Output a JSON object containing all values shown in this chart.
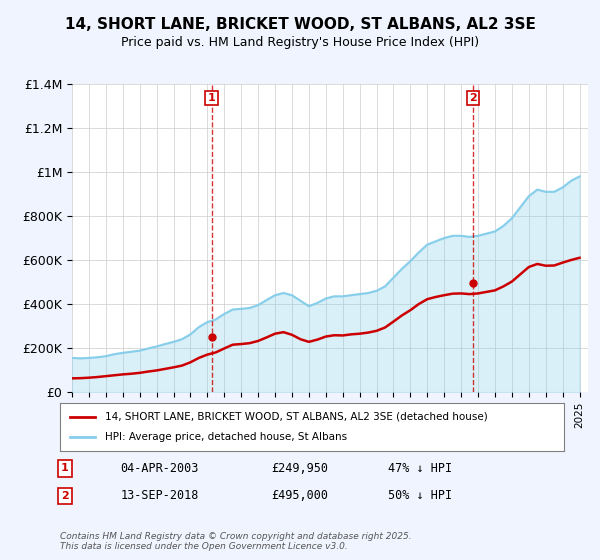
{
  "title": "14, SHORT LANE, BRICKET WOOD, ST ALBANS, AL2 3SE",
  "subtitle": "Price paid vs. HM Land Registry's House Price Index (HPI)",
  "ylim": [
    0,
    1400000
  ],
  "yticks": [
    0,
    200000,
    400000,
    600000,
    800000,
    1000000,
    1200000,
    1400000
  ],
  "ytick_labels": [
    "£0",
    "£200K",
    "£400K",
    "£600K",
    "£800K",
    "£1M",
    "£1.2M",
    "£1.4M"
  ],
  "x_start_year": 1995,
  "x_end_year": 2025,
  "hpi_color": "#87CEEB",
  "price_color": "#CC0000",
  "vline_color": "#CC0000",
  "marker1_year": 2003.25,
  "marker2_year": 2018.7,
  "price1": 249950,
  "price2": 495000,
  "legend_property": "14, SHORT LANE, BRICKET WOOD, ST ALBANS, AL2 3SE (detached house)",
  "legend_hpi": "HPI: Average price, detached house, St Albans",
  "annotation1_label": "1",
  "annotation2_label": "2",
  "ann1_date": "04-APR-2003",
  "ann1_price": "£249,950",
  "ann1_hpi": "47% ↓ HPI",
  "ann2_date": "13-SEP-2018",
  "ann2_price": "£495,000",
  "ann2_hpi": "50% ↓ HPI",
  "footer": "Contains HM Land Registry data © Crown copyright and database right 2025.\nThis data is licensed under the Open Government Licence v3.0.",
  "bg_color": "#f0f4ff",
  "plot_bg": "#ffffff",
  "hpi_data": [
    [
      1995.0,
      155000
    ],
    [
      1995.5,
      153000
    ],
    [
      1996.0,
      155000
    ],
    [
      1996.5,
      158000
    ],
    [
      1997.0,
      163000
    ],
    [
      1997.5,
      172000
    ],
    [
      1998.0,
      178000
    ],
    [
      1998.5,
      183000
    ],
    [
      1999.0,
      188000
    ],
    [
      1999.5,
      198000
    ],
    [
      2000.0,
      207000
    ],
    [
      2000.5,
      218000
    ],
    [
      2001.0,
      228000
    ],
    [
      2001.5,
      240000
    ],
    [
      2002.0,
      262000
    ],
    [
      2002.5,
      295000
    ],
    [
      2003.0,
      318000
    ],
    [
      2003.5,
      330000
    ],
    [
      2004.0,
      355000
    ],
    [
      2004.5,
      375000
    ],
    [
      2005.0,
      378000
    ],
    [
      2005.5,
      382000
    ],
    [
      2006.0,
      395000
    ],
    [
      2006.5,
      418000
    ],
    [
      2007.0,
      440000
    ],
    [
      2007.5,
      450000
    ],
    [
      2008.0,
      440000
    ],
    [
      2008.5,
      415000
    ],
    [
      2009.0,
      390000
    ],
    [
      2009.5,
      405000
    ],
    [
      2010.0,
      425000
    ],
    [
      2010.5,
      435000
    ],
    [
      2011.0,
      435000
    ],
    [
      2011.5,
      440000
    ],
    [
      2012.0,
      445000
    ],
    [
      2012.5,
      450000
    ],
    [
      2013.0,
      460000
    ],
    [
      2013.5,
      480000
    ],
    [
      2014.0,
      520000
    ],
    [
      2014.5,
      560000
    ],
    [
      2015.0,
      595000
    ],
    [
      2015.5,
      635000
    ],
    [
      2016.0,
      670000
    ],
    [
      2016.5,
      685000
    ],
    [
      2017.0,
      700000
    ],
    [
      2017.5,
      710000
    ],
    [
      2018.0,
      710000
    ],
    [
      2018.5,
      705000
    ],
    [
      2019.0,
      710000
    ],
    [
      2019.5,
      720000
    ],
    [
      2020.0,
      730000
    ],
    [
      2020.5,
      755000
    ],
    [
      2021.0,
      790000
    ],
    [
      2021.5,
      840000
    ],
    [
      2022.0,
      890000
    ],
    [
      2022.5,
      920000
    ],
    [
      2023.0,
      910000
    ],
    [
      2023.5,
      910000
    ],
    [
      2024.0,
      930000
    ],
    [
      2024.5,
      960000
    ],
    [
      2025.0,
      980000
    ]
  ],
  "price_data": [
    [
      1995.0,
      62000
    ],
    [
      1995.5,
      63000
    ],
    [
      1996.0,
      65000
    ],
    [
      1996.5,
      68000
    ],
    [
      1997.0,
      72000
    ],
    [
      1997.5,
      76000
    ],
    [
      1998.0,
      80000
    ],
    [
      1998.5,
      83000
    ],
    [
      1999.0,
      87000
    ],
    [
      1999.5,
      93000
    ],
    [
      2000.0,
      98000
    ],
    [
      2000.5,
      105000
    ],
    [
      2001.0,
      112000
    ],
    [
      2001.5,
      120000
    ],
    [
      2002.0,
      135000
    ],
    [
      2002.5,
      155000
    ],
    [
      2003.0,
      170000
    ],
    [
      2003.5,
      180000
    ],
    [
      2004.0,
      198000
    ],
    [
      2004.5,
      215000
    ],
    [
      2005.0,
      218000
    ],
    [
      2005.5,
      222000
    ],
    [
      2006.0,
      232000
    ],
    [
      2006.5,
      248000
    ],
    [
      2007.0,
      265000
    ],
    [
      2007.5,
      272000
    ],
    [
      2008.0,
      260000
    ],
    [
      2008.5,
      240000
    ],
    [
      2009.0,
      228000
    ],
    [
      2009.5,
      238000
    ],
    [
      2010.0,
      252000
    ],
    [
      2010.5,
      258000
    ],
    [
      2011.0,
      257000
    ],
    [
      2011.5,
      262000
    ],
    [
      2012.0,
      265000
    ],
    [
      2012.5,
      270000
    ],
    [
      2013.0,
      278000
    ],
    [
      2013.5,
      293000
    ],
    [
      2014.0,
      320000
    ],
    [
      2014.5,
      348000
    ],
    [
      2015.0,
      372000
    ],
    [
      2015.5,
      400000
    ],
    [
      2016.0,
      422000
    ],
    [
      2016.5,
      432000
    ],
    [
      2017.0,
      440000
    ],
    [
      2017.5,
      447000
    ],
    [
      2018.0,
      448000
    ],
    [
      2018.5,
      445000
    ],
    [
      2019.0,
      448000
    ],
    [
      2019.5,
      455000
    ],
    [
      2020.0,
      462000
    ],
    [
      2020.5,
      480000
    ],
    [
      2021.0,
      502000
    ],
    [
      2021.5,
      535000
    ],
    [
      2022.0,
      568000
    ],
    [
      2022.5,
      582000
    ],
    [
      2023.0,
      574000
    ],
    [
      2023.5,
      575000
    ],
    [
      2024.0,
      588000
    ],
    [
      2024.5,
      600000
    ],
    [
      2025.0,
      610000
    ]
  ]
}
